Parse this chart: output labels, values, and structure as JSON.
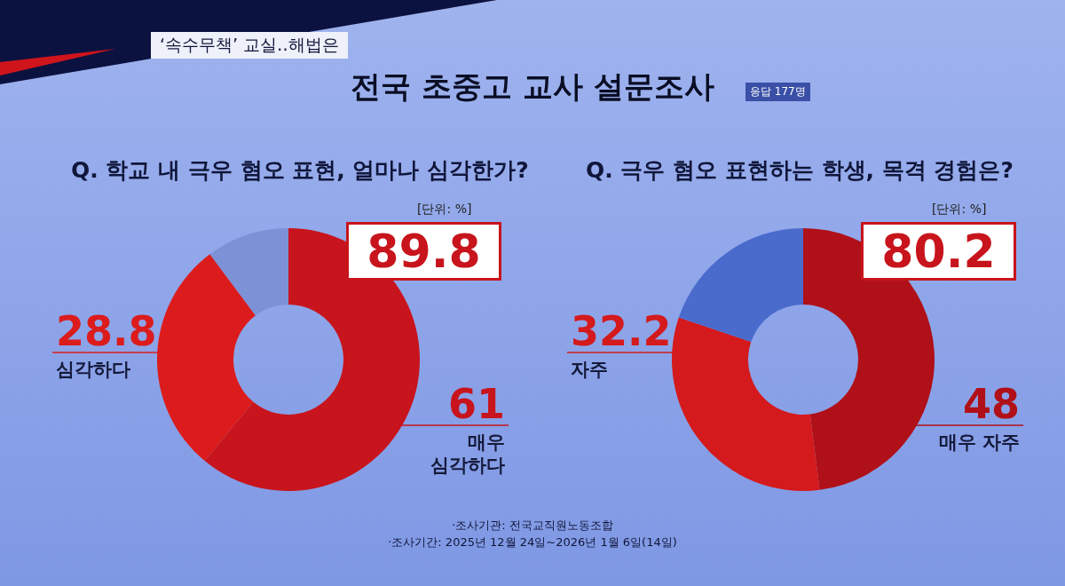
{
  "chart_data": [
    {
      "type": "donut",
      "title": "Q. 학교 내 극우 혐오 표현, 얼마나 심각한가?",
      "categories": [
        "매우\n심각하다",
        "심각하다",
        null
      ],
      "values": [
        61,
        28.8,
        10.2
      ],
      "colors": [
        "#c8141c",
        "#dc1c1c",
        "#7d92d6"
      ],
      "value_labels": [
        "61",
        "28.8",
        null
      ],
      "totals": [
        "89.8"
      ],
      "annotations": [
        "‘속수무책’ 교실‥해법은",
        "전국 초중고 교사 설문조사",
        "응답 177명",
        "[단위: %]"
      ]
    },
    {
      "type": "donut",
      "title": "Q. 극우 혐오 표현하는 학생, 목격 경험은?",
      "categories": [
        "매우 자주",
        "자주",
        null
      ],
      "values": [
        48,
        32.2,
        19.8
      ],
      "colors": [
        "#b01018",
        "#d41a1c",
        "#4a6acc"
      ],
      "value_labels": [
        "48",
        "32.2",
        null
      ],
      "totals": [
        "80.2"
      ],
      "annotations": [
        "[단위: %]",
        "·조사기관: 전국교직원노동조합",
        "·조사기간: 2025년 12월 24일~2026년 1월 6일(14일)"
      ]
    }
  ]
}
